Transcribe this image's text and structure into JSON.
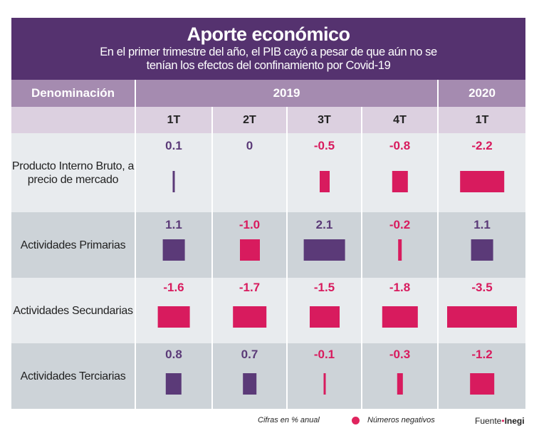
{
  "chart_data": {
    "type": "table",
    "title": "Aporte económico",
    "subtitle": "En el primer trimestre del año, el PIB cayó a pesar de que aún no se tenían los efectos del confinamiento por Covid-19",
    "header": {
      "label": "Denominación",
      "years": [
        {
          "year": "2019",
          "span": 4
        },
        {
          "year": "2020",
          "span": 1
        }
      ]
    },
    "quarters": [
      "1T",
      "2T",
      "3T",
      "4T",
      "1T"
    ],
    "rows": [
      {
        "label": "Producto Interno Bruto, a precio de mercado",
        "values": [
          0.1,
          0,
          -0.5,
          -0.8,
          -2.2
        ],
        "text": [
          "0.1",
          "0",
          "-0.5",
          "-0.8",
          "-2.2"
        ]
      },
      {
        "label": "Actividades Primarias",
        "values": [
          1.1,
          -1.0,
          2.1,
          -0.2,
          1.1
        ],
        "text": [
          "1.1",
          "-1.0",
          "2.1",
          "-0.2",
          "1.1"
        ]
      },
      {
        "label": "Actividades Secundarias",
        "values": [
          -1.6,
          -1.7,
          -1.5,
          -1.8,
          -3.5
        ],
        "text": [
          "-1.6",
          "-1.7",
          "-1.5",
          "-1.8",
          "-3.5"
        ]
      },
      {
        "label": "Actividades Terciarias",
        "values": [
          0.8,
          0.7,
          -0.1,
          -0.3,
          -1.2
        ],
        "text": [
          "0.8",
          "0.7",
          "-0.1",
          "-0.3",
          "-1.2"
        ]
      }
    ],
    "colors": {
      "positive": "#5b3a78",
      "negative": "#d81b5e"
    }
  },
  "footer": {
    "units": "Cifras en % anual",
    "legend": "Números negativos",
    "source_prefix": "Fuente",
    "source": "Inegi"
  }
}
